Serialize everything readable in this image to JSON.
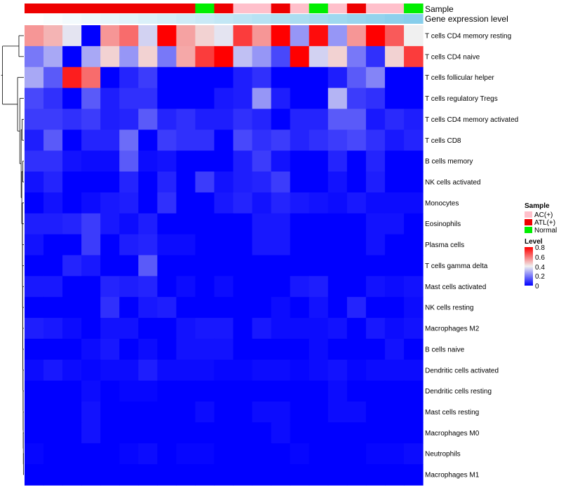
{
  "chart_data": {
    "type": "heatmap",
    "title": "",
    "annotations": [
      {
        "key": "sample",
        "label": "Sample"
      },
      {
        "key": "gene_expression",
        "label": "Gene expression level"
      }
    ],
    "columns": [
      {
        "sample": "ATL(+)",
        "gene_expression": 0.0
      },
      {
        "sample": "ATL(+)",
        "gene_expression": 0.05
      },
      {
        "sample": "ATL(+)",
        "gene_expression": 0.1
      },
      {
        "sample": "ATL(+)",
        "gene_expression": 0.15
      },
      {
        "sample": "ATL(+)",
        "gene_expression": 0.2
      },
      {
        "sample": "ATL(+)",
        "gene_expression": 0.25
      },
      {
        "sample": "ATL(+)",
        "gene_expression": 0.3
      },
      {
        "sample": "ATL(+)",
        "gene_expression": 0.35
      },
      {
        "sample": "ATL(+)",
        "gene_expression": 0.4
      },
      {
        "sample": "Normal",
        "gene_expression": 0.45
      },
      {
        "sample": "ATL(+)",
        "gene_expression": 0.5
      },
      {
        "sample": "AC(+)",
        "gene_expression": 0.55
      },
      {
        "sample": "AC(+)",
        "gene_expression": 0.6
      },
      {
        "sample": "ATL(+)",
        "gene_expression": 0.65
      },
      {
        "sample": "AC(+)",
        "gene_expression": 0.7
      },
      {
        "sample": "Normal",
        "gene_expression": 0.75
      },
      {
        "sample": "AC(+)",
        "gene_expression": 0.8
      },
      {
        "sample": "ATL(+)",
        "gene_expression": 0.85
      },
      {
        "sample": "AC(+)",
        "gene_expression": 0.9
      },
      {
        "sample": "AC(+)",
        "gene_expression": 0.95
      },
      {
        "sample": "Normal",
        "gene_expression": 1.0
      }
    ],
    "rows": [
      "T cells CD4 memory resting",
      "T cells CD4 naive",
      "T cells follicular helper",
      "T cells regulatory  Tregs",
      "T cells CD4 memory activated",
      "T cells CD8",
      "B cells memory",
      "NK cells activated",
      "Monocytes",
      "Eosinophils",
      "Plasma cells",
      "T cells gamma delta",
      "Mast cells activated",
      "NK cells resting",
      "Macrophages M2",
      "B cells naive",
      "Dendritic cells activated",
      "Dendritic cells resting",
      "Mast cells resting",
      "Macrophages M0",
      "Neutrophils",
      "Macrophages M1"
    ],
    "values": [
      [
        0.55,
        0.5,
        0.38,
        0.0,
        0.55,
        0.62,
        0.35,
        0.8,
        0.53,
        0.45,
        0.38,
        0.7,
        0.55,
        0.8,
        0.25,
        0.78,
        0.25,
        0.55,
        0.8,
        0.65,
        0.4
      ],
      [
        0.2,
        0.28,
        0.0,
        0.28,
        0.45,
        0.25,
        0.45,
        0.2,
        0.52,
        0.7,
        0.8,
        0.32,
        0.25,
        0.12,
        0.8,
        0.35,
        0.45,
        0.2,
        0.08,
        0.45,
        0.7
      ],
      [
        0.28,
        0.15,
        0.75,
        0.62,
        0.0,
        0.06,
        0.1,
        0.0,
        0.0,
        0.0,
        0.0,
        0.05,
        0.08,
        0.0,
        0.0,
        0.0,
        0.05,
        0.15,
        0.22,
        0.0,
        0.0
      ],
      [
        0.12,
        0.08,
        0.0,
        0.15,
        0.05,
        0.08,
        0.08,
        0.0,
        0.0,
        0.0,
        0.04,
        0.05,
        0.25,
        0.05,
        0.0,
        0.0,
        0.3,
        0.1,
        0.08,
        0.0,
        0.0
      ],
      [
        0.1,
        0.1,
        0.08,
        0.1,
        0.05,
        0.06,
        0.15,
        0.06,
        0.08,
        0.05,
        0.05,
        0.08,
        0.06,
        0.0,
        0.06,
        0.06,
        0.15,
        0.15,
        0.04,
        0.07,
        0.05
      ],
      [
        0.05,
        0.15,
        0.0,
        0.06,
        0.06,
        0.18,
        0.0,
        0.1,
        0.08,
        0.08,
        0.0,
        0.12,
        0.08,
        0.1,
        0.06,
        0.08,
        0.1,
        0.12,
        0.08,
        0.04,
        0.06
      ],
      [
        0.08,
        0.08,
        0.03,
        0.02,
        0.02,
        0.15,
        0.02,
        0.03,
        0.0,
        0.0,
        0.0,
        0.05,
        0.1,
        0.03,
        0.0,
        0.0,
        0.06,
        0.0,
        0.06,
        0.0,
        0.0
      ],
      [
        0.03,
        0.06,
        0.0,
        0.0,
        0.0,
        0.06,
        0.0,
        0.06,
        0.0,
        0.1,
        0.03,
        0.05,
        0.06,
        0.1,
        0.0,
        0.0,
        0.03,
        0.0,
        0.05,
        0.0,
        0.0
      ],
      [
        0.0,
        0.03,
        0.0,
        0.02,
        0.04,
        0.05,
        0.0,
        0.08,
        0.0,
        0.0,
        0.04,
        0.06,
        0.03,
        0.06,
        0.04,
        0.03,
        0.02,
        0.04,
        0.02,
        0.02,
        0.02
      ],
      [
        0.05,
        0.05,
        0.06,
        0.1,
        0.04,
        0.02,
        0.05,
        0.0,
        0.0,
        0.0,
        0.0,
        0.0,
        0.04,
        0.04,
        0.0,
        0.0,
        0.0,
        0.0,
        0.03,
        0.03,
        0.0
      ],
      [
        0.03,
        0.0,
        0.0,
        0.1,
        0.0,
        0.05,
        0.06,
        0.02,
        0.02,
        0.0,
        0.0,
        0.0,
        0.04,
        0.04,
        0.0,
        0.0,
        0.0,
        0.0,
        0.03,
        0.0,
        0.0
      ],
      [
        0.0,
        0.0,
        0.06,
        0.04,
        0.0,
        0.0,
        0.15,
        0.0,
        0.0,
        0.0,
        0.0,
        0.0,
        0.0,
        0.0,
        0.0,
        0.0,
        0.0,
        0.0,
        0.0,
        0.0,
        0.0
      ],
      [
        0.04,
        0.04,
        0.0,
        0.0,
        0.06,
        0.05,
        0.06,
        0.0,
        0.02,
        0.0,
        0.02,
        0.0,
        0.0,
        0.0,
        0.04,
        0.05,
        0.0,
        0.0,
        0.03,
        0.02,
        0.03
      ],
      [
        0.0,
        0.0,
        0.0,
        0.0,
        0.08,
        0.0,
        0.04,
        0.05,
        0.0,
        0.0,
        0.0,
        0.0,
        0.0,
        0.02,
        0.0,
        0.03,
        0.0,
        0.06,
        0.0,
        0.0,
        0.02
      ],
      [
        0.05,
        0.04,
        0.02,
        0.0,
        0.03,
        0.03,
        0.0,
        0.0,
        0.03,
        0.04,
        0.04,
        0.0,
        0.04,
        0.02,
        0.02,
        0.02,
        0.03,
        0.0,
        0.04,
        0.02,
        0.03
      ],
      [
        0.0,
        0.0,
        0.0,
        0.02,
        0.04,
        0.0,
        0.02,
        0.0,
        0.03,
        0.03,
        0.03,
        0.0,
        0.0,
        0.0,
        0.0,
        0.02,
        0.0,
        0.0,
        0.0,
        0.03,
        0.0
      ],
      [
        0.02,
        0.04,
        0.02,
        0.01,
        0.02,
        0.02,
        0.05,
        0.02,
        0.02,
        0.02,
        0.01,
        0.01,
        0.02,
        0.02,
        0.01,
        0.02,
        0.03,
        0.01,
        0.02,
        0.02,
        0.02
      ],
      [
        0.0,
        0.0,
        0.0,
        0.02,
        0.0,
        0.01,
        0.01,
        0.0,
        0.0,
        0.0,
        0.0,
        0.0,
        0.0,
        0.0,
        0.0,
        0.0,
        0.02,
        0.0,
        0.0,
        0.0,
        0.0
      ],
      [
        0.0,
        0.0,
        0.0,
        0.03,
        0.0,
        0.0,
        0.0,
        0.0,
        0.0,
        0.02,
        0.0,
        0.0,
        0.02,
        0.02,
        0.0,
        0.0,
        0.02,
        0.02,
        0.0,
        0.0,
        0.0
      ],
      [
        0.0,
        0.0,
        0.0,
        0.03,
        0.0,
        0.0,
        0.0,
        0.0,
        0.0,
        0.0,
        0.0,
        0.0,
        0.0,
        0.02,
        0.0,
        0.0,
        0.0,
        0.0,
        0.0,
        0.0,
        0.0
      ],
      [
        0.01,
        0.0,
        0.0,
        0.0,
        0.0,
        0.01,
        0.02,
        0.0,
        0.01,
        0.01,
        0.0,
        0.0,
        0.0,
        0.0,
        0.01,
        0.0,
        0.0,
        0.0,
        0.01,
        0.01,
        0.02
      ],
      [
        0.0,
        0.0,
        0.0,
        0.0,
        0.0,
        0.0,
        0.0,
        0.0,
        0.0,
        0.0,
        0.0,
        0.0,
        0.0,
        0.0,
        0.0,
        0.0,
        0.0,
        0.0,
        0.0,
        0.0,
        0.0
      ]
    ],
    "dendrogram": {
      "merges": [
        [
          0,
          1,
          0.95
        ],
        [
          2,
          3,
          0.3
        ],
        [
          4,
          5,
          0.22
        ],
        [
          6,
          7,
          0.12
        ],
        [
          8,
          9,
          0.1
        ]
      ]
    },
    "legend": {
      "sample": {
        "title": "Sample",
        "items": [
          {
            "label": "AC(+)",
            "color": "#ffc0cb"
          },
          {
            "label": "ATL(+)",
            "color": "#ee0000"
          },
          {
            "label": "Normal",
            "color": "#00ee00"
          }
        ]
      },
      "level": {
        "title": "Level",
        "ticks": [
          0.8,
          0.6,
          0.4,
          0.2,
          0
        ],
        "tick_labels": [
          "0.8",
          "0.6",
          "0.4",
          "0.2",
          "0"
        ],
        "range": [
          0,
          0.8
        ]
      },
      "position": "right"
    },
    "colors": {
      "low": "#0000ff",
      "mid": "#f0f0f0",
      "high": "#ff0000",
      "mid_value": 0.4,
      "annotation_low": "#ffffff",
      "annotation_high": "#87ceeb"
    }
  }
}
